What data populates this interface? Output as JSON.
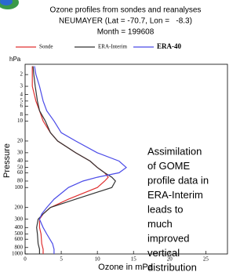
{
  "chart_data": {
    "type": "line",
    "title": "Ozone profiles from sondes and reanalyses",
    "subtitle": "NEUMAYER (Lat = -70.7, Lon =   -8.3)",
    "month": "Month = 199608",
    "x_label": "Ozone in mPa",
    "y_label": "Pressure",
    "y_unit": "hPa",
    "annotation": [
      "Assimilation",
      "of GOME",
      "profile data in",
      "ERA-Interim",
      "leads to",
      "much",
      "improved",
      "vertical",
      "distribution"
    ],
    "annotation_color": "#1a8fd6",
    "y_log": true,
    "xlim": [
      0,
      28
    ],
    "ylim": [
      1000,
      1.4
    ],
    "xticks": [
      0,
      5,
      10,
      15,
      20,
      25
    ],
    "yticks": [
      2,
      3,
      4,
      5,
      6,
      8,
      10,
      20,
      30,
      40,
      50,
      60,
      80,
      100,
      200,
      300,
      400,
      500,
      600,
      800,
      1000
    ],
    "series": [
      {
        "name": "Sonde",
        "color": "#e03030",
        "y": [
          1000,
          850,
          700,
          500,
          400,
          300,
          250,
          200,
          150,
          100,
          80,
          70,
          60,
          50,
          40,
          30,
          20,
          15,
          10,
          7,
          5,
          3,
          2,
          1.5
        ],
        "x": [
          2.5,
          2.5,
          2.3,
          2.2,
          2.0,
          2.0,
          2.5,
          3.5,
          6,
          10,
          11,
          11.5,
          11,
          10,
          9,
          7,
          4.5,
          3.5,
          2.5,
          2,
          1.5,
          1,
          1,
          1
        ]
      },
      {
        "name": "ERA-Interim",
        "color": "#333333",
        "y": [
          1000,
          850,
          700,
          500,
          400,
          300,
          250,
          200,
          150,
          100,
          80,
          70,
          60,
          50,
          40,
          30,
          20,
          15,
          10,
          7,
          5,
          3,
          2,
          1.5
        ],
        "x": [
          2,
          2,
          1.8,
          1.7,
          1.6,
          1.8,
          2.5,
          3.5,
          7,
          12,
          12.5,
          12,
          11,
          10,
          9,
          7,
          4.5,
          3.5,
          2.8,
          2,
          1.7,
          1.4,
          1.2,
          1.1
        ]
      },
      {
        "name": "ERA-40",
        "color": "#4a4ae8",
        "y": [
          1000,
          850,
          700,
          500,
          400,
          300,
          250,
          200,
          150,
          100,
          80,
          70,
          60,
          50,
          40,
          30,
          20,
          15,
          10,
          7,
          5,
          3,
          2,
          1.5
        ],
        "x": [
          4,
          4,
          3.8,
          3,
          2.5,
          2,
          2.3,
          3,
          4,
          6,
          8,
          10,
          13,
          14,
          13,
          10,
          7,
          5,
          4,
          3,
          2.5,
          2,
          1.5,
          1.3
        ]
      }
    ]
  }
}
